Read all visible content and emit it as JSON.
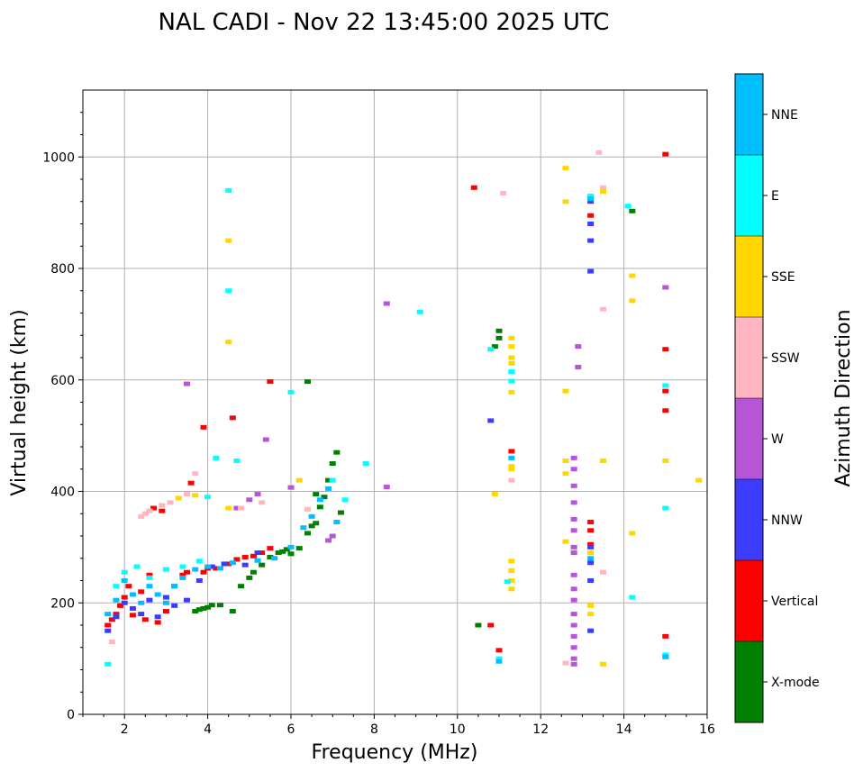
{
  "chart_data": {
    "type": "scatter",
    "title": "NAL CADI - Nov 22 13:45:00 2025 UTC",
    "xlabel": "Frequency (MHz)",
    "ylabel": "Virtual height (km)",
    "xlim": [
      1,
      16
    ],
    "ylim": [
      0,
      1120
    ],
    "xticks": [
      2,
      4,
      6,
      8,
      10,
      12,
      14,
      16
    ],
    "yticks": [
      0,
      200,
      400,
      600,
      800,
      1000
    ],
    "grid": true,
    "colorbar": {
      "label": "Azimuth Direction",
      "categories": [
        {
          "name": "X-mode",
          "color": "#008000"
        },
        {
          "name": "Vertical",
          "color": "#ff0000"
        },
        {
          "name": "NNW",
          "color": "#3c3cff"
        },
        {
          "name": "W",
          "color": "#b656d6"
        },
        {
          "name": "SSW",
          "color": "#ffb6c1"
        },
        {
          "name": "SSE",
          "color": "#ffd700"
        },
        {
          "name": "E",
          "color": "#00ffff"
        },
        {
          "name": "NNE",
          "color": "#00bfff"
        }
      ]
    },
    "series": [
      {
        "name": "X-mode",
        "points": [
          [
            3.7,
            185
          ],
          [
            3.8,
            188
          ],
          [
            3.9,
            190
          ],
          [
            4.0,
            192
          ],
          [
            4.1,
            196
          ],
          [
            4.3,
            196
          ],
          [
            4.6,
            185
          ],
          [
            4.8,
            230
          ],
          [
            5.0,
            245
          ],
          [
            5.1,
            255
          ],
          [
            5.3,
            268
          ],
          [
            5.5,
            282
          ],
          [
            5.7,
            290
          ],
          [
            5.8,
            292
          ],
          [
            5.9,
            296
          ],
          [
            6.0,
            288
          ],
          [
            6.2,
            298
          ],
          [
            6.4,
            325
          ],
          [
            6.5,
            338
          ],
          [
            6.6,
            343
          ],
          [
            6.7,
            372
          ],
          [
            6.8,
            390
          ],
          [
            6.9,
            420
          ],
          [
            7.0,
            450
          ],
          [
            7.1,
            470
          ],
          [
            7.2,
            362
          ],
          [
            6.6,
            395
          ],
          [
            6.4,
            597
          ],
          [
            10.5,
            160
          ],
          [
            11.0,
            688
          ],
          [
            11.0,
            675
          ],
          [
            10.9,
            660
          ],
          [
            14.2,
            903
          ]
        ]
      },
      {
        "name": "Vertical",
        "points": [
          [
            1.6,
            160
          ],
          [
            1.7,
            170
          ],
          [
            1.8,
            180
          ],
          [
            1.9,
            195
          ],
          [
            2.0,
            210
          ],
          [
            2.1,
            230
          ],
          [
            2.2,
            178
          ],
          [
            2.4,
            220
          ],
          [
            2.5,
            170
          ],
          [
            2.6,
            250
          ],
          [
            2.8,
            165
          ],
          [
            3.0,
            185
          ],
          [
            3.2,
            230
          ],
          [
            3.4,
            250
          ],
          [
            3.5,
            255
          ],
          [
            3.9,
            255
          ],
          [
            4.0,
            262
          ],
          [
            4.2,
            262
          ],
          [
            4.5,
            270
          ],
          [
            4.7,
            278
          ],
          [
            4.9,
            282
          ],
          [
            5.1,
            284
          ],
          [
            5.3,
            290
          ],
          [
            5.5,
            298
          ],
          [
            2.7,
            370
          ],
          [
            2.9,
            365
          ],
          [
            3.6,
            415
          ],
          [
            3.9,
            515
          ],
          [
            4.6,
            532
          ],
          [
            5.5,
            597
          ],
          [
            10.4,
            945
          ],
          [
            10.8,
            160
          ],
          [
            11.0,
            115
          ],
          [
            13.2,
            345
          ],
          [
            13.2,
            330
          ],
          [
            13.2,
            305
          ],
          [
            13.2,
            895
          ],
          [
            15.0,
            1005
          ],
          [
            15.0,
            655
          ],
          [
            15.0,
            580
          ],
          [
            15.0,
            545
          ],
          [
            15.0,
            140
          ],
          [
            11.3,
            472
          ]
        ]
      },
      {
        "name": "NNW",
        "points": [
          [
            1.6,
            150
          ],
          [
            1.8,
            175
          ],
          [
            2.0,
            200
          ],
          [
            2.2,
            190
          ],
          [
            2.4,
            180
          ],
          [
            2.6,
            205
          ],
          [
            2.8,
            175
          ],
          [
            3.0,
            210
          ],
          [
            3.2,
            195
          ],
          [
            3.5,
            205
          ],
          [
            3.8,
            240
          ],
          [
            4.1,
            265
          ],
          [
            4.4,
            270
          ],
          [
            4.9,
            268
          ],
          [
            5.2,
            290
          ],
          [
            10.8,
            527
          ],
          [
            13.2,
            920
          ],
          [
            13.2,
            880
          ],
          [
            13.2,
            850
          ],
          [
            13.2,
            795
          ],
          [
            13.2,
            300
          ],
          [
            13.2,
            240
          ],
          [
            13.2,
            150
          ],
          [
            13.2,
            272
          ]
        ]
      },
      {
        "name": "W",
        "points": [
          [
            3.5,
            593
          ],
          [
            4.7,
            370
          ],
          [
            5.0,
            385
          ],
          [
            5.2,
            395
          ],
          [
            5.4,
            493
          ],
          [
            6.0,
            407
          ],
          [
            6.9,
            312
          ],
          [
            7.0,
            320
          ],
          [
            8.3,
            737
          ],
          [
            8.3,
            408
          ],
          [
            12.8,
            440
          ],
          [
            12.8,
            410
          ],
          [
            12.8,
            380
          ],
          [
            12.8,
            350
          ],
          [
            12.8,
            330
          ],
          [
            12.8,
            300
          ],
          [
            12.8,
            290
          ],
          [
            12.8,
            250
          ],
          [
            12.8,
            225
          ],
          [
            12.8,
            205
          ],
          [
            12.8,
            180
          ],
          [
            12.8,
            160
          ],
          [
            12.8,
            140
          ],
          [
            12.8,
            120
          ],
          [
            12.8,
            100
          ],
          [
            12.8,
            90
          ],
          [
            12.9,
            660
          ],
          [
            12.9,
            623
          ],
          [
            12.8,
            460
          ],
          [
            15.0,
            766
          ]
        ]
      },
      {
        "name": "SSW",
        "points": [
          [
            1.7,
            130
          ],
          [
            2.4,
            355
          ],
          [
            2.5,
            360
          ],
          [
            2.6,
            365
          ],
          [
            2.9,
            375
          ],
          [
            3.1,
            380
          ],
          [
            3.5,
            395
          ],
          [
            3.7,
            432
          ],
          [
            4.8,
            370
          ],
          [
            5.3,
            380
          ],
          [
            6.4,
            368
          ],
          [
            11.1,
            935
          ],
          [
            11.3,
            420
          ],
          [
            12.6,
            92
          ],
          [
            13.4,
            1008
          ],
          [
            13.5,
            945
          ],
          [
            13.5,
            727
          ],
          [
            13.5,
            255
          ]
        ]
      },
      {
        "name": "SSE",
        "points": [
          [
            3.3,
            388
          ],
          [
            3.7,
            393
          ],
          [
            4.5,
            850
          ],
          [
            4.5,
            668
          ],
          [
            4.5,
            370
          ],
          [
            6.2,
            420
          ],
          [
            10.9,
            395
          ],
          [
            11.3,
            675
          ],
          [
            11.3,
            660
          ],
          [
            11.3,
            640
          ],
          [
            11.3,
            630
          ],
          [
            11.3,
            445
          ],
          [
            11.3,
            440
          ],
          [
            11.3,
            275
          ],
          [
            11.3,
            258
          ],
          [
            11.3,
            240
          ],
          [
            11.3,
            225
          ],
          [
            11.3,
            578
          ],
          [
            12.6,
            980
          ],
          [
            12.6,
            920
          ],
          [
            12.6,
            580
          ],
          [
            12.6,
            455
          ],
          [
            12.6,
            432
          ],
          [
            12.6,
            310
          ],
          [
            13.2,
            290
          ],
          [
            13.2,
            180
          ],
          [
            13.2,
            195
          ],
          [
            13.5,
            938
          ],
          [
            13.5,
            455
          ],
          [
            13.5,
            90
          ],
          [
            14.2,
            787
          ],
          [
            14.2,
            742
          ],
          [
            14.2,
            325
          ],
          [
            15.0,
            455
          ],
          [
            15.8,
            420
          ]
        ]
      },
      {
        "name": "E",
        "points": [
          [
            1.6,
            90
          ],
          [
            1.8,
            230
          ],
          [
            2.0,
            255
          ],
          [
            2.3,
            265
          ],
          [
            2.6,
            245
          ],
          [
            3.0,
            260
          ],
          [
            3.4,
            265
          ],
          [
            3.8,
            275
          ],
          [
            4.0,
            390
          ],
          [
            4.2,
            460
          ],
          [
            4.5,
            940
          ],
          [
            4.5,
            760
          ],
          [
            4.7,
            455
          ],
          [
            6.0,
            578
          ],
          [
            7.0,
            420
          ],
          [
            7.3,
            385
          ],
          [
            7.8,
            450
          ],
          [
            9.1,
            722
          ],
          [
            10.8,
            655
          ],
          [
            11.0,
            100
          ],
          [
            11.2,
            238
          ],
          [
            11.3,
            615
          ],
          [
            11.3,
            598
          ],
          [
            13.2,
            930
          ],
          [
            14.1,
            912
          ],
          [
            14.2,
            210
          ],
          [
            15.0,
            590
          ],
          [
            15.0,
            370
          ],
          [
            15.0,
            107
          ]
        ]
      },
      {
        "name": "NNE",
        "points": [
          [
            1.6,
            180
          ],
          [
            1.8,
            205
          ],
          [
            2.0,
            240
          ],
          [
            2.2,
            215
          ],
          [
            2.4,
            200
          ],
          [
            2.6,
            230
          ],
          [
            2.8,
            215
          ],
          [
            3.0,
            200
          ],
          [
            3.2,
            230
          ],
          [
            3.4,
            245
          ],
          [
            3.7,
            260
          ],
          [
            4.0,
            265
          ],
          [
            4.3,
            262
          ],
          [
            4.6,
            272
          ],
          [
            5.2,
            276
          ],
          [
            5.6,
            280
          ],
          [
            6.0,
            300
          ],
          [
            6.3,
            335
          ],
          [
            6.5,
            355
          ],
          [
            6.7,
            385
          ],
          [
            6.9,
            405
          ],
          [
            7.1,
            345
          ],
          [
            11.0,
            95
          ],
          [
            11.3,
            460
          ],
          [
            13.2,
            925
          ],
          [
            13.2,
            280
          ],
          [
            15.0,
            103
          ]
        ]
      }
    ]
  }
}
